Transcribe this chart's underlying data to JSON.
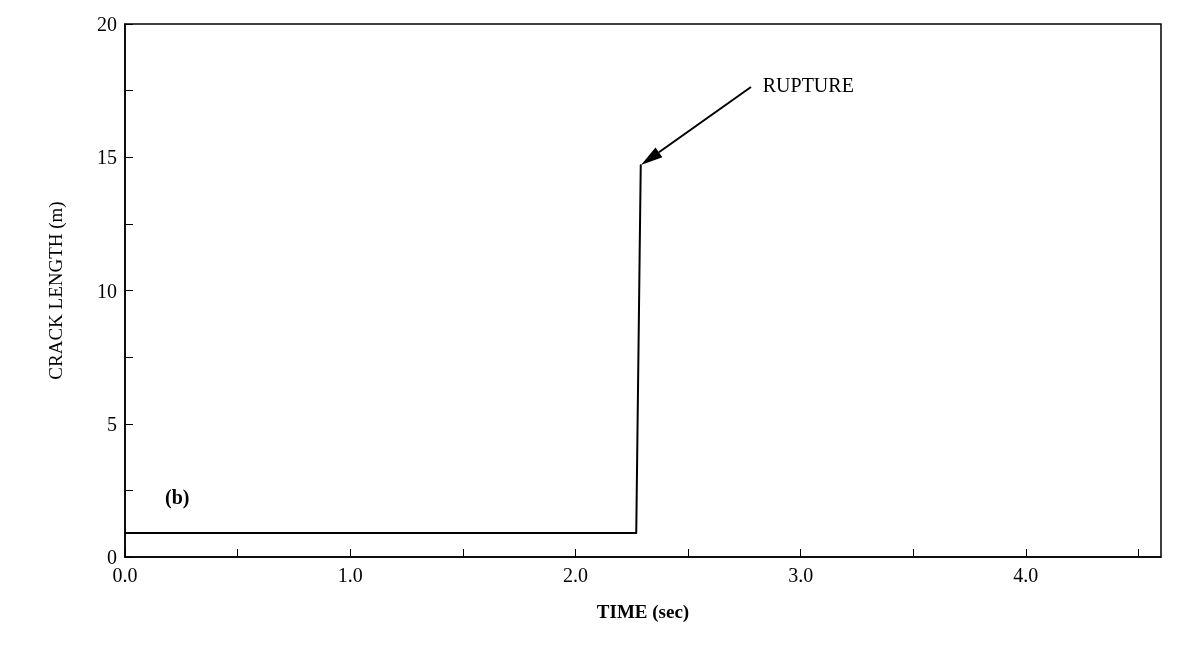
{
  "chart_data": {
    "type": "line",
    "xlabel": "TIME (sec)",
    "ylabel": "CRACK LENGTH (m)",
    "series": [
      {
        "color": "#000000",
        "x": [
          0,
          2.27,
          2.29
        ],
        "values": [
          0.9,
          0.9,
          14.7
        ]
      }
    ],
    "xlim": [
      0,
      4.6
    ],
    "xticks": [
      {
        "value": 0,
        "label": "0.0"
      },
      {
        "value": 0.5,
        "label": null
      },
      {
        "value": 1,
        "label": "1.0"
      },
      {
        "value": 1.5,
        "label": null
      },
      {
        "value": 2,
        "label": "2.0"
      },
      {
        "value": 2.5,
        "label": null
      },
      {
        "value": 3,
        "label": "3.0"
      },
      {
        "value": 3.5,
        "label": null
      },
      {
        "value": 4,
        "label": "4.0"
      },
      {
        "value": 4.5,
        "label": null
      }
    ],
    "ylim": [
      0,
      20
    ],
    "yticks": [
      0,
      {
        "value": 2.5,
        "label": null
      },
      5,
      {
        "value": 7.5,
        "label": null
      },
      10,
      {
        "value": 12.5,
        "label": null
      },
      15,
      {
        "value": 17.5,
        "label": null
      },
      20
    ],
    "annotations": [
      "(b)",
      "RUPTURE"
    ],
    "grid": false,
    "marker": "none",
    "line_style": "solid"
  }
}
